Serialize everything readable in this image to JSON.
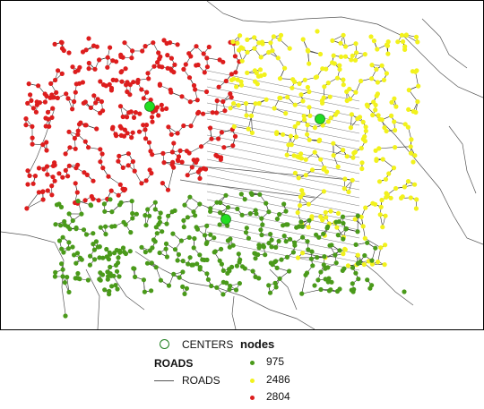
{
  "map": {
    "colors": {
      "cluster_975": "#4a9a1a",
      "cluster_2486": "#f2f21c",
      "cluster_2804": "#dd1d1d",
      "center": "#22dd22",
      "road": "#555555",
      "edge": "#333333"
    }
  },
  "legend": {
    "centers_label": "CENTERS",
    "nodes_title": "nodes",
    "roads_title": "ROADS",
    "roads_label": "ROADS",
    "node_classes": [
      {
        "label": "975",
        "color": "#4a9a1a"
      },
      {
        "label": "2486",
        "color": "#f2f21c"
      },
      {
        "label": "2804",
        "color": "#dd1d1d"
      }
    ]
  }
}
